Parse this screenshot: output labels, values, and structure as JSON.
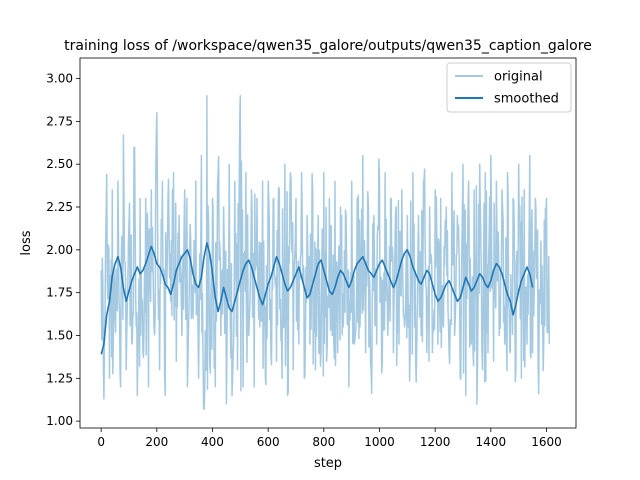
{
  "chart_data": {
    "type": "line",
    "title": "training loss of /workspace/qwen35_galore/outputs/qwen35_caption_galore",
    "xlabel": "step",
    "ylabel": "loss",
    "xlim": [
      -76,
      1706
    ],
    "ylim": [
      0.96,
      3.12
    ],
    "xticks": [
      0,
      200,
      400,
      600,
      800,
      1000,
      1200,
      1400,
      1600
    ],
    "yticks": [
      1.0,
      1.25,
      1.5,
      1.75,
      2.0,
      2.25,
      2.5,
      2.75,
      3.0
    ],
    "grid": false,
    "legend_position": "upper right",
    "x_points": 1630,
    "series": [
      {
        "name": "original",
        "color": "#1f77b4",
        "opacity": 0.4,
        "values_sampled_every_10_steps": [
          1.88,
          1.13,
          2.44,
          1.25,
          2.35,
          1.6,
          2.4,
          1.2,
          2.67,
          1.3,
          2.15,
          1.45,
          2.6,
          1.15,
          2.3,
          1.4,
          2.3,
          1.2,
          2.35,
          1.55,
          2.8,
          1.3,
          2.4,
          1.15,
          2.3,
          1.7,
          2.45,
          1.35,
          2.2,
          1.5,
          2.35,
          1.2,
          2.15,
          1.6,
          2.4,
          1.25,
          2.55,
          1.05,
          2.9,
          1.35,
          2.3,
          1.2,
          2.45,
          1.5,
          2.25,
          1.1,
          2.5,
          1.15,
          2.4,
          1.3,
          2.9,
          1.2,
          2.45,
          1.5,
          2.35,
          1.2,
          2.3,
          1.55,
          2.4,
          1.25,
          2.4,
          1.4,
          2.3,
          1.35,
          2.35,
          1.25,
          2.5,
          1.15,
          2.45,
          1.3,
          2.3,
          1.45,
          2.45,
          1.25,
          2.2,
          1.45,
          2.35,
          1.3,
          2.2,
          1.4,
          2.45,
          1.35,
          2.3,
          1.5,
          2.4,
          1.4,
          2.25,
          1.55,
          2.2,
          1.2,
          2.4,
          1.45,
          2.3,
          1.55,
          2.55,
          1.4,
          2.25,
          1.3,
          2.2,
          1.45,
          2.4,
          1.35,
          2.45,
          1.5,
          2.3,
          1.4,
          2.25,
          1.45,
          2.35,
          1.55,
          2.2,
          1.4,
          2.45,
          1.35,
          2.2,
          1.5,
          2.4,
          1.4,
          2.25,
          1.4,
          2.35,
          1.45,
          2.3,
          1.55,
          2.25,
          1.4,
          2.45,
          1.5,
          2.2,
          1.25,
          2.5,
          1.15,
          2.4,
          1.45,
          2.35,
          1.1,
          2.5,
          1.3,
          2.45,
          1.4,
          2.55,
          1.35,
          2.4,
          1.5,
          2.35,
          1.45,
          2.45,
          1.4,
          2.3,
          1.3,
          2.5,
          1.25,
          2.35,
          1.45,
          2.55,
          1.4,
          2.3,
          1.35,
          2.05,
          1.45,
          2.3,
          1.45
        ]
      },
      {
        "name": "smoothed",
        "color": "#1f77b4",
        "opacity": 1.0,
        "values_sampled_every_10_steps": [
          1.39,
          1.45,
          1.62,
          1.7,
          1.85,
          1.92,
          1.96,
          1.9,
          1.78,
          1.7,
          1.76,
          1.82,
          1.86,
          1.9,
          1.86,
          1.88,
          1.92,
          1.97,
          2.02,
          1.98,
          1.92,
          1.9,
          1.86,
          1.8,
          1.78,
          1.74,
          1.8,
          1.88,
          1.92,
          1.96,
          1.98,
          2.0,
          1.95,
          1.86,
          1.8,
          1.78,
          1.84,
          1.96,
          2.04,
          1.98,
          1.86,
          1.72,
          1.64,
          1.7,
          1.78,
          1.72,
          1.66,
          1.64,
          1.7,
          1.76,
          1.82,
          1.88,
          1.92,
          1.94,
          1.9,
          1.84,
          1.78,
          1.72,
          1.68,
          1.74,
          1.8,
          1.84,
          1.9,
          1.96,
          1.92,
          1.86,
          1.8,
          1.76,
          1.78,
          1.82,
          1.86,
          1.9,
          1.84,
          1.78,
          1.72,
          1.74,
          1.8,
          1.86,
          1.92,
          1.94,
          1.88,
          1.82,
          1.76,
          1.74,
          1.78,
          1.84,
          1.88,
          1.86,
          1.82,
          1.78,
          1.82,
          1.88,
          1.92,
          1.94,
          1.96,
          1.92,
          1.88,
          1.86,
          1.84,
          1.88,
          1.92,
          1.94,
          1.9,
          1.86,
          1.82,
          1.78,
          1.82,
          1.88,
          1.94,
          1.98,
          2.0,
          1.96,
          1.9,
          1.86,
          1.82,
          1.8,
          1.84,
          1.88,
          1.86,
          1.8,
          1.74,
          1.7,
          1.72,
          1.76,
          1.8,
          1.82,
          1.78,
          1.74,
          1.7,
          1.72,
          1.78,
          1.84,
          1.8,
          1.76,
          1.78,
          1.82,
          1.86,
          1.84,
          1.8,
          1.78,
          1.82,
          1.88,
          1.92,
          1.9,
          1.86,
          1.8,
          1.74,
          1.7,
          1.62,
          1.68,
          1.76,
          1.82,
          1.86,
          1.9,
          1.86,
          1.78
        ]
      }
    ]
  }
}
